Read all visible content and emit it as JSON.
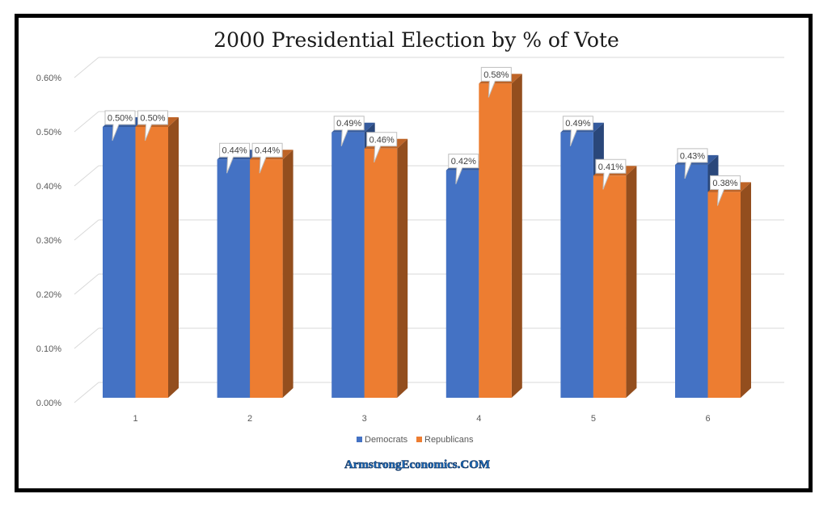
{
  "chart_data": {
    "type": "bar",
    "style": "3d-clustered-column",
    "title": "2000 Presidential Election by % of  Vote",
    "xlabel": "",
    "ylabel": "",
    "categories": [
      "1",
      "2",
      "3",
      "4",
      "5",
      "6"
    ],
    "series": [
      {
        "name": "Democrats",
        "color": "#4472C4",
        "values": [
          0.5,
          0.44,
          0.49,
          0.42,
          0.49,
          0.43
        ],
        "labels": [
          "0.50%",
          "0.44%",
          "0.49%",
          "0.42%",
          "0.49%",
          "0.43%"
        ]
      },
      {
        "name": "Republicans",
        "color": "#ED7D31",
        "values": [
          0.5,
          0.44,
          0.46,
          0.58,
          0.41,
          0.38
        ],
        "labels": [
          "0.50%",
          "0.44%",
          "0.46%",
          "0.58%",
          "0.41%",
          "0.38%"
        ]
      }
    ],
    "ylim": [
      0,
      0.6
    ],
    "yticks": [
      "0.00%",
      "0.10%",
      "0.20%",
      "0.30%",
      "0.40%",
      "0.50%",
      "0.60%"
    ],
    "ytick_values": [
      0,
      0.1,
      0.2,
      0.3,
      0.4,
      0.5,
      0.6
    ],
    "grid": true,
    "legend": "bottom",
    "watermark": "ArmstrongEconomics.COM"
  }
}
